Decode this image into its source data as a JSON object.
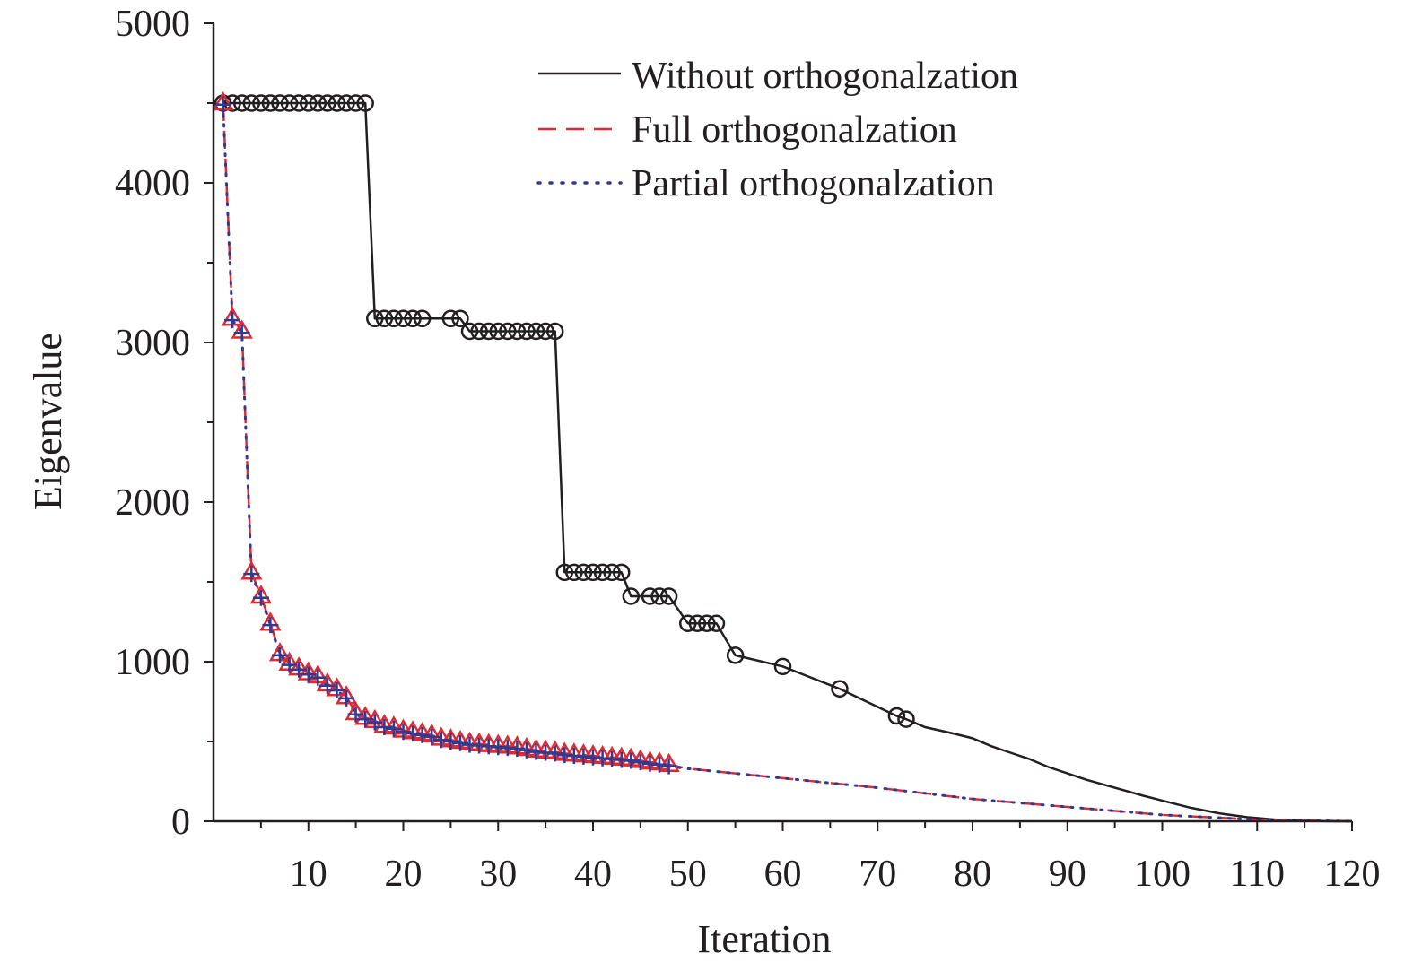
{
  "chart_data": {
    "type": "line",
    "title": "",
    "xlabel": "Iteration",
    "ylabel": "Eigenvalue",
    "xlim": [
      0,
      120
    ],
    "ylim": [
      0,
      5000
    ],
    "x_ticks": [
      10,
      20,
      30,
      40,
      50,
      60,
      70,
      80,
      90,
      100,
      110,
      120
    ],
    "x_tick_labels": [
      "10",
      "20",
      "30",
      "40",
      "50",
      "60",
      "70",
      "80",
      "90",
      "100",
      "110",
      "120"
    ],
    "y_ticks": [
      0,
      1000,
      2000,
      3000,
      4000,
      5000
    ],
    "y_tick_labels": [
      "0",
      "1000",
      "2000",
      "3000",
      "4000",
      "5000"
    ],
    "legend_position": "top-right",
    "series": [
      {
        "name": "Without orthogonalzation",
        "style": "solid",
        "color": "#231f20",
        "marker": "circle",
        "x": [
          1,
          2,
          3,
          4,
          5,
          6,
          7,
          8,
          9,
          10,
          11,
          12,
          13,
          14,
          15,
          16,
          17,
          18,
          19,
          20,
          21,
          22,
          25,
          26,
          27,
          28,
          29,
          30,
          31,
          32,
          33,
          34,
          35,
          36,
          37,
          38,
          39,
          40,
          41,
          42,
          43,
          44,
          46,
          47,
          48,
          50,
          51,
          52,
          53,
          55,
          60,
          66,
          72,
          73
        ],
        "values": [
          4500,
          4500,
          4500,
          4500,
          4500,
          4500,
          4500,
          4500,
          4500,
          4500,
          4500,
          4500,
          4500,
          4500,
          4500,
          4500,
          3150,
          3150,
          3150,
          3150,
          3150,
          3150,
          3150,
          3150,
          3070,
          3070,
          3070,
          3070,
          3070,
          3070,
          3070,
          3070,
          3070,
          3070,
          1560,
          1560,
          1560,
          1560,
          1560,
          1560,
          1560,
          1410,
          1410,
          1410,
          1410,
          1240,
          1240,
          1240,
          1240,
          1040,
          970,
          830,
          660,
          640
        ],
        "tail_x": [
          75,
          78,
          80,
          82,
          84,
          86,
          88,
          90,
          92,
          95,
          98,
          100,
          103,
          106,
          109,
          112,
          115,
          118,
          120
        ],
        "tail_values": [
          590,
          550,
          520,
          470,
          430,
          390,
          340,
          300,
          260,
          210,
          160,
          130,
          85,
          50,
          25,
          10,
          3,
          0,
          0
        ]
      },
      {
        "name": "Full orthogonalzation",
        "style": "dashed",
        "color": "#e02a32",
        "marker": "triangle",
        "x": [
          1,
          2,
          3,
          4,
          5,
          6,
          7,
          8,
          9,
          10,
          11,
          12,
          13,
          14,
          15,
          16,
          17,
          18,
          19,
          20,
          21,
          22,
          23,
          24,
          25,
          26,
          27,
          28,
          29,
          30,
          31,
          32,
          33,
          34,
          35,
          36,
          37,
          38,
          39,
          40,
          41,
          42,
          43,
          44,
          45,
          46,
          47,
          48
        ],
        "values": [
          4500,
          3150,
          3070,
          1560,
          1410,
          1240,
          1050,
          990,
          960,
          930,
          910,
          860,
          830,
          780,
          680,
          650,
          630,
          600,
          590,
          570,
          560,
          550,
          540,
          520,
          510,
          500,
          490,
          485,
          480,
          475,
          470,
          465,
          455,
          445,
          440,
          435,
          425,
          420,
          415,
          410,
          405,
          400,
          395,
          390,
          380,
          370,
          365,
          355
        ],
        "tail_x": [
          50,
          60,
          70,
          80,
          90,
          100,
          110,
          120
        ],
        "tail_values": [
          330,
          270,
          210,
          140,
          90,
          40,
          10,
          0
        ]
      },
      {
        "name": "Partial orthogonalzation",
        "style": "dotted",
        "color": "#2e3a94",
        "marker": "plus",
        "x": [
          1,
          2,
          3,
          4,
          5,
          6,
          7,
          8,
          9,
          10,
          11,
          12,
          13,
          14,
          15,
          16,
          17,
          18,
          19,
          20,
          21,
          22,
          23,
          24,
          25,
          26,
          27,
          28,
          29,
          30,
          31,
          32,
          33,
          34,
          35,
          36,
          37,
          38,
          39,
          40,
          41,
          42,
          43,
          44,
          45,
          46,
          47,
          48
        ],
        "values": [
          4490,
          3140,
          3060,
          1550,
          1400,
          1230,
          1040,
          980,
          950,
          920,
          900,
          850,
          820,
          770,
          670,
          640,
          620,
          590,
          580,
          560,
          550,
          540,
          530,
          510,
          500,
          490,
          480,
          475,
          470,
          465,
          460,
          455,
          445,
          435,
          430,
          425,
          415,
          410,
          405,
          400,
          395,
          390,
          385,
          380,
          370,
          360,
          355,
          345
        ],
        "tail_x": [
          50,
          60,
          70,
          80,
          90,
          100,
          110,
          120
        ],
        "tail_values": [
          330,
          270,
          210,
          140,
          90,
          40,
          10,
          0
        ]
      }
    ]
  }
}
